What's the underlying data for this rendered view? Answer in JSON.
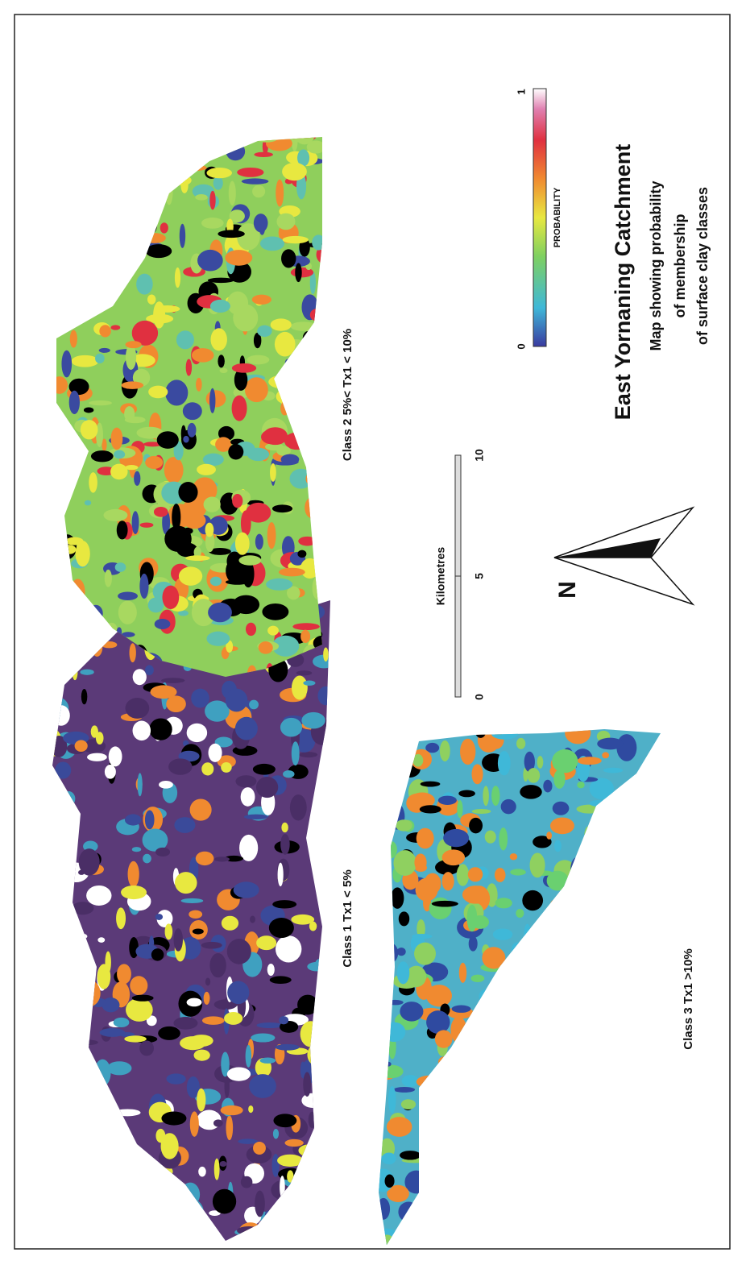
{
  "maps": [
    {
      "label": "Class 1 Tx1 < 5%"
    },
    {
      "label": "Class 2  5%< Tx1 < 10%"
    },
    {
      "label": "Class 3  Tx1 >10%"
    }
  ],
  "scale_bar": {
    "title": "Kilometres",
    "ticks": [
      "0",
      "5",
      "10"
    ]
  },
  "north": "N",
  "legend": {
    "title": "PROBABILITY",
    "min": "0",
    "max": "1"
  },
  "title": "East Yornaning Catchment",
  "subtitle_lines": [
    "Map showing probability",
    "of membership",
    "of surface clay classes"
  ]
}
